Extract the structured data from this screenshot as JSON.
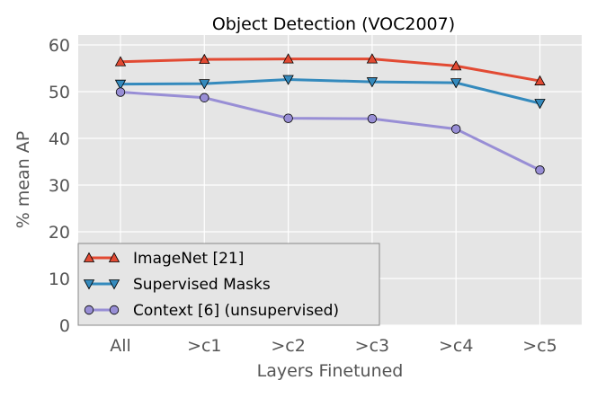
{
  "chart_data": {
    "type": "line",
    "title": "Object Detection (VOC2007)",
    "xlabel": "Layers Finetuned",
    "ylabel": "% mean AP",
    "categories": [
      "All",
      ">c1",
      ">c2",
      ">c3",
      ">c4",
      ">c5"
    ],
    "ylim": [
      0,
      60
    ],
    "yticks": [
      0,
      10,
      20,
      30,
      40,
      50,
      60
    ],
    "grid": true,
    "legend_position": "lower-left",
    "series": [
      {
        "name": "ImageNet [21]",
        "values": [
          56.4,
          56.9,
          57.0,
          57.0,
          55.5,
          52.3
        ],
        "color": "#E24A33",
        "marker": "triangle-up"
      },
      {
        "name": "Supervised Masks",
        "values": [
          51.6,
          51.7,
          52.6,
          52.1,
          51.9,
          47.5
        ],
        "color": "#348ABD",
        "marker": "triangle-down"
      },
      {
        "name": "Context [6] (unsupervised)",
        "values": [
          49.9,
          48.7,
          44.3,
          44.2,
          42.0,
          33.2
        ],
        "color": "#988ED5",
        "marker": "circle"
      }
    ]
  }
}
